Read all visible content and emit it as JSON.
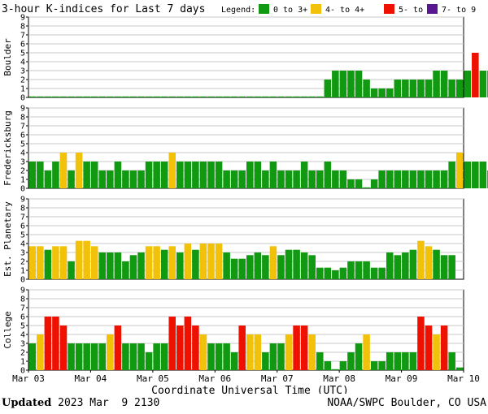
{
  "title": "3-hour K-indices for Last 7 days",
  "legend": {
    "label": "Legend:",
    "items": [
      {
        "text": "0 to 3+",
        "color": "#119911"
      },
      {
        "text": "4- to 4+",
        "color": "#f2c20a"
      },
      {
        "text": "5- to 6+",
        "color": "#ee1100"
      },
      {
        "text": "7- to 9",
        "color": "#5a1890"
      }
    ]
  },
  "xlabel": "Coordinate Universal Time (UTC)",
  "footer": {
    "updated_label": "Updated",
    "updated_value": "2023 Mar  9 2130",
    "source": "NOAA/SWPC Boulder, CO USA"
  },
  "chart_data": [
    {
      "type": "bar",
      "panel": "Boulder",
      "ylabel": "Boulder",
      "ylim": [
        0,
        9
      ],
      "yticks": [
        0,
        1,
        2,
        3,
        4,
        5,
        6,
        7,
        8,
        9
      ],
      "xticks": [
        "Mar 03",
        "Mar 04",
        "Mar 05",
        "Mar 06",
        "Mar 07",
        "Mar 08",
        "Mar 09",
        "Mar 10"
      ],
      "bins_per_day": 8,
      "values": [
        0,
        0,
        0,
        0,
        0,
        0,
        0,
        0,
        0,
        0,
        0,
        0,
        0,
        0,
        0,
        0,
        0,
        0,
        0,
        0,
        0,
        0,
        0,
        0,
        0,
        0,
        0,
        0,
        0,
        0,
        0,
        0,
        0,
        0,
        0,
        0,
        0,
        0,
        2,
        3,
        3,
        3,
        3,
        2,
        1,
        1,
        1,
        2,
        2,
        2,
        2,
        2,
        3,
        3,
        2,
        2,
        3,
        5,
        3,
        3,
        2,
        3,
        0
      ]
    },
    {
      "type": "bar",
      "panel": "Fredericksburg",
      "ylabel": "Fredericksburg",
      "ylim": [
        0,
        9
      ],
      "yticks": [
        0,
        1,
        2,
        3,
        4,
        5,
        6,
        7,
        8,
        9
      ],
      "xticks": [
        "Mar 03",
        "Mar 04",
        "Mar 05",
        "Mar 06",
        "Mar 07",
        "Mar 08",
        "Mar 09",
        "Mar 10"
      ],
      "bins_per_day": 8,
      "values": [
        3,
        3,
        2,
        3,
        4,
        2,
        4,
        3,
        3,
        2,
        2,
        3,
        2,
        2,
        2,
        3,
        3,
        3,
        4,
        3,
        3,
        3,
        3,
        3,
        3,
        2,
        2,
        2,
        3,
        3,
        2,
        3,
        2,
        2,
        2,
        3,
        2,
        2,
        3,
        2,
        2,
        1,
        1,
        0,
        1,
        2,
        2,
        2,
        2,
        2,
        2,
        2,
        2,
        2,
        3,
        4,
        3,
        3,
        3,
        2,
        0.3
      ]
    },
    {
      "type": "bar",
      "panel": "Est. Planetary",
      "ylabel": "Est. Planetary",
      "ylim": [
        0,
        9
      ],
      "yticks": [
        0,
        1,
        2,
        3,
        4,
        5,
        6,
        7,
        8,
        9
      ],
      "xticks": [
        "Mar 03",
        "Mar 04",
        "Mar 05",
        "Mar 06",
        "Mar 07",
        "Mar 08",
        "Mar 09",
        "Mar 10"
      ],
      "bins_per_day": 8,
      "values": [
        3.7,
        3.7,
        3.3,
        3.7,
        3.7,
        2.0,
        4.3,
        4.3,
        3.7,
        3.0,
        3.0,
        3.0,
        2.0,
        2.7,
        3.0,
        3.7,
        3.7,
        3.3,
        3.7,
        3.0,
        4.0,
        3.3,
        4.0,
        4.0,
        4.0,
        3.0,
        2.3,
        2.3,
        2.7,
        3.0,
        2.7,
        3.7,
        2.7,
        3.3,
        3.3,
        3.0,
        2.7,
        1.3,
        1.3,
        1.0,
        1.3,
        2.0,
        2.0,
        2.0,
        1.3,
        1.3,
        3.0,
        2.7,
        3.0,
        3.3,
        4.3,
        3.7,
        3.3,
        2.7,
        2.7
      ]
    },
    {
      "type": "bar",
      "panel": "College",
      "ylabel": "College",
      "ylim": [
        0,
        9
      ],
      "yticks": [
        0,
        1,
        2,
        3,
        4,
        5,
        6,
        7,
        8,
        9
      ],
      "xticks": [
        "Mar 03",
        "Mar 04",
        "Mar 05",
        "Mar 06",
        "Mar 07",
        "Mar 08",
        "Mar 09",
        "Mar 10"
      ],
      "bins_per_day": 8,
      "values": [
        3,
        4,
        6,
        6,
        5,
        3,
        3,
        3,
        3,
        3,
        4,
        5,
        3,
        3,
        3,
        2,
        3,
        3,
        6,
        5,
        6,
        5,
        4,
        3,
        3,
        3,
        2,
        5,
        4,
        4,
        2,
        3,
        3,
        4,
        5,
        5,
        4,
        2,
        1,
        0,
        1,
        2,
        3,
        4,
        1,
        1,
        2,
        2,
        2,
        2,
        6,
        5,
        4,
        5,
        2,
        0.3
      ]
    }
  ]
}
